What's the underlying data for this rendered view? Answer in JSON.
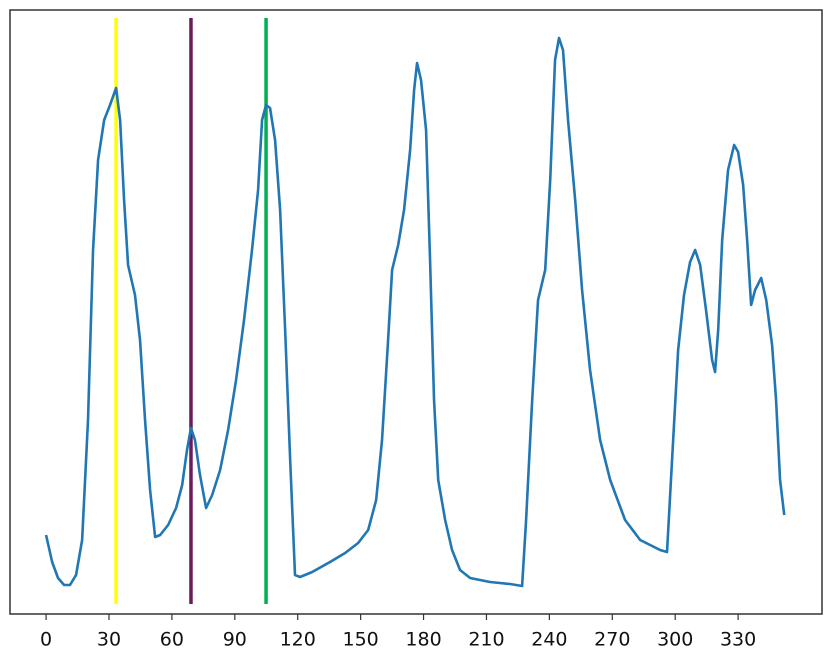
{
  "chart_data": {
    "type": "line",
    "x": [
      0,
      2.9,
      5.7,
      8.6,
      11.4,
      14.3,
      17.2,
      20.0,
      22.4,
      24.8,
      27.7,
      30.5,
      33.4,
      35.3,
      37.2,
      39.1,
      42.4,
      44.8,
      47.2,
      49.6,
      52.0,
      54.4,
      58.2,
      62.0,
      64.9,
      67.2,
      69.1,
      71.0,
      73.4,
      76.3,
      79.2,
      83.0,
      86.8,
      90.6,
      94.4,
      98.2,
      101.1,
      103.0,
      104.9,
      106.8,
      109.2,
      111.6,
      114.0,
      116.4,
      118.7,
      121.1,
      126.9,
      135.4,
      142.6,
      148.8,
      153.6,
      157.4,
      160.2,
      163.1,
      165.0,
      167.9,
      170.7,
      173.6,
      175.5,
      176.9,
      178.8,
      181.2,
      183.1,
      185.0,
      187.0,
      190.3,
      193.6,
      197.4,
      202.2,
      211.7,
      221.3,
      227.0,
      228.9,
      231.8,
      234.6,
      238.0,
      240.4,
      242.7,
      244.6,
      246.5,
      248.9,
      252.3,
      255.6,
      259.4,
      264.2,
      269.0,
      276.1,
      283.3,
      292.8,
      296.1,
      298.5,
      301.4,
      304.2,
      307.1,
      309.5,
      311.9,
      314.7,
      317.6,
      319.0,
      320.5,
      322.4,
      325.2,
      328.1,
      330.0,
      332.4,
      334.3,
      336.2,
      338.1,
      341.0,
      343.4,
      346.2,
      348.1,
      350.0,
      352.0
    ],
    "series": [
      {
        "color": "#2077b4",
        "values": [
          79,
          52,
          36,
          29,
          29,
          39,
          74,
          194,
          364,
          454,
          494,
          509,
          526,
          494,
          414,
          349,
          319,
          274,
          194,
          124,
          77,
          79,
          89,
          106,
          129,
          164,
          186,
          174,
          139,
          106,
          119,
          144,
          184,
          234,
          294,
          364,
          424,
          494,
          509,
          506,
          474,
          404,
          284,
          154,
          39,
          37,
          42,
          52,
          61,
          71,
          84,
          114,
          174,
          274,
          344,
          369,
          404,
          464,
          524,
          551,
          534,
          484,
          354,
          214,
          134,
          94,
          64,
          44,
          36,
          32,
          30,
          28,
          94,
          214,
          314,
          344,
          434,
          554,
          576,
          564,
          494,
          414,
          324,
          244,
          174,
          134,
          94,
          74,
          64,
          62,
          154,
          264,
          319,
          352,
          364,
          349,
          304,
          254,
          242,
          284,
          374,
          444,
          469,
          462,
          429,
          374,
          309,
          324,
          336,
          314,
          269,
          214,
          134,
          99
        ]
      }
    ],
    "vlines": [
      {
        "x": 33.4,
        "color": "#ffff00"
      },
      {
        "x": 69.1,
        "color": "#6b1a5a"
      },
      {
        "x": 104.9,
        "color": "#00b050"
      }
    ],
    "xlim": [
      -17.2,
      370
    ],
    "ylim": [
      0,
      604
    ],
    "xticks": [
      0,
      30,
      60,
      90,
      120,
      150,
      180,
      210,
      240,
      270,
      300,
      330
    ]
  }
}
